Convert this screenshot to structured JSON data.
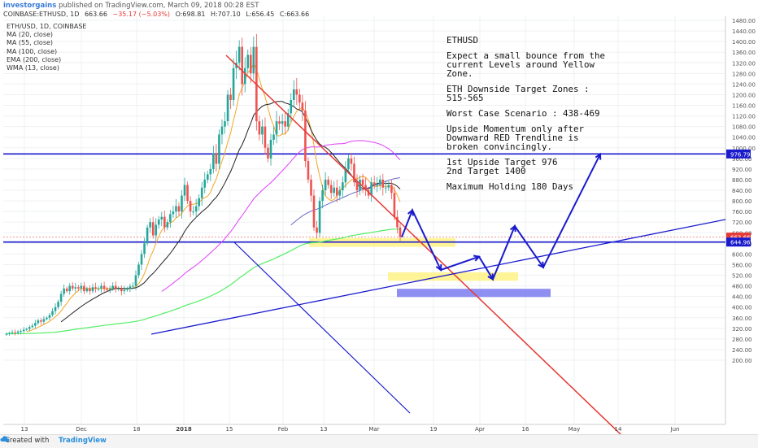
{
  "header": {
    "publisher": "investorgains",
    "published_text": "published on TradingView.com, March 09, 2018 00:28 EST",
    "ohlc": [
      "COINBASE:ETHUSD, 1D",
      "663.66",
      "−35.17 (−5.03%)",
      "O:698.81",
      "H:707.10",
      "L:656.45",
      "C:663.66"
    ]
  },
  "legend": {
    "items": [
      "ETH/USD, 1D, COINBASE",
      "MA (20, close)",
      "MA (55, close)",
      "MA (100, close)",
      "EMA (200, close)",
      "WMA (13, close)"
    ]
  },
  "annotation": {
    "title": "ETHUSD",
    "lines": [
      "Expect a small bounce from the current Levels around Yellow Zone.",
      "ETH Downside Target Zones : 515-565",
      "Worst Case Scenario : 438-469",
      "Upside Momentum only after Downward RED Trendline is broken convincingly.",
      "1st Upside Target 976\n2nd Target 1400",
      "Maximum Holding 180 Days"
    ]
  },
  "footer": {
    "created_with": "Created with",
    "brand": "TradingView"
  },
  "colors": {
    "up": "#26a69a",
    "down": "#ef5350",
    "ma20": "#f5a623",
    "ma55": "#222222",
    "ma100": "#e040fb",
    "ema200": "#55ee66",
    "wma13": "#6b6bc8",
    "trend_red": "#e53935",
    "trend_blue": "#1a1acd",
    "level": "#1a1acd",
    "zone_yellow": "#fff176",
    "zone_blue": "#7b7bf0"
  },
  "chart_data": {
    "type": "candlestick",
    "symbol": "ETHUSD",
    "x_ticks": [
      "13",
      "Dec",
      "18",
      "2018",
      "15",
      "Feb",
      "13",
      "Mar",
      "19",
      "Apr",
      "16",
      "May",
      "14",
      "Jun"
    ],
    "y_ticks": [
      1480,
      1440,
      1400,
      1360,
      1320,
      1280,
      1240,
      1200,
      1160,
      1120,
      1080,
      1040,
      1000,
      960,
      920,
      880,
      840,
      800,
      760,
      720,
      680,
      640,
      600,
      560,
      520,
      480,
      440,
      400,
      360,
      320,
      280,
      240,
      200
    ],
    "ylim": [
      180,
      1500
    ],
    "price_labels": [
      {
        "value": 976.79,
        "text": "976.79"
      },
      {
        "value": 663.66,
        "text": "663.66"
      },
      {
        "value": 644.96,
        "text": "644.96"
      }
    ],
    "levels": [
      976.79,
      644.96
    ],
    "zones": [
      {
        "name": "yellow-zone-upper",
        "from": 627,
        "to": 660
      },
      {
        "name": "yellow-zone-lower",
        "from": 499,
        "to": 531
      },
      {
        "name": "blue-zone",
        "from": 438,
        "to": 469
      }
    ],
    "close_series": [
      300,
      302,
      305,
      303,
      308,
      310,
      315,
      318,
      325,
      330,
      340,
      350,
      345,
      355,
      360,
      370,
      385,
      400,
      420,
      450,
      470,
      460,
      480,
      470,
      475,
      470,
      480,
      460,
      470,
      460,
      475,
      470,
      470,
      480,
      470,
      465,
      470,
      480,
      470,
      470,
      460,
      465,
      470,
      478,
      480,
      520,
      560,
      600,
      640,
      700,
      720,
      670,
      710,
      730,
      740,
      700,
      720,
      750,
      760,
      780,
      760,
      820,
      860,
      800,
      760,
      760,
      780,
      810,
      850,
      880,
      900,
      920,
      980,
      940,
      1050,
      1080,
      1100,
      1200,
      1180,
      1300,
      1320,
      1380,
      1240,
      1300,
      1350,
      1280,
      1380,
      1100,
      1050,
      1080,
      1000,
      960,
      1030,
      1050,
      1100,
      1090,
      1100,
      1080,
      1130,
      1180,
      1220,
      1200,
      1170,
      1140,
      950,
      880,
      820,
      700,
      680,
      800,
      840,
      880,
      860,
      830,
      850,
      820,
      840,
      870,
      920,
      960,
      940,
      870,
      840,
      880,
      860,
      840,
      820,
      870,
      860,
      860,
      880,
      850,
      850,
      860,
      830,
      740,
      700,
      663.66
    ],
    "projection": [
      663.66,
      765,
      540,
      590,
      505,
      705,
      550,
      976
    ]
  }
}
